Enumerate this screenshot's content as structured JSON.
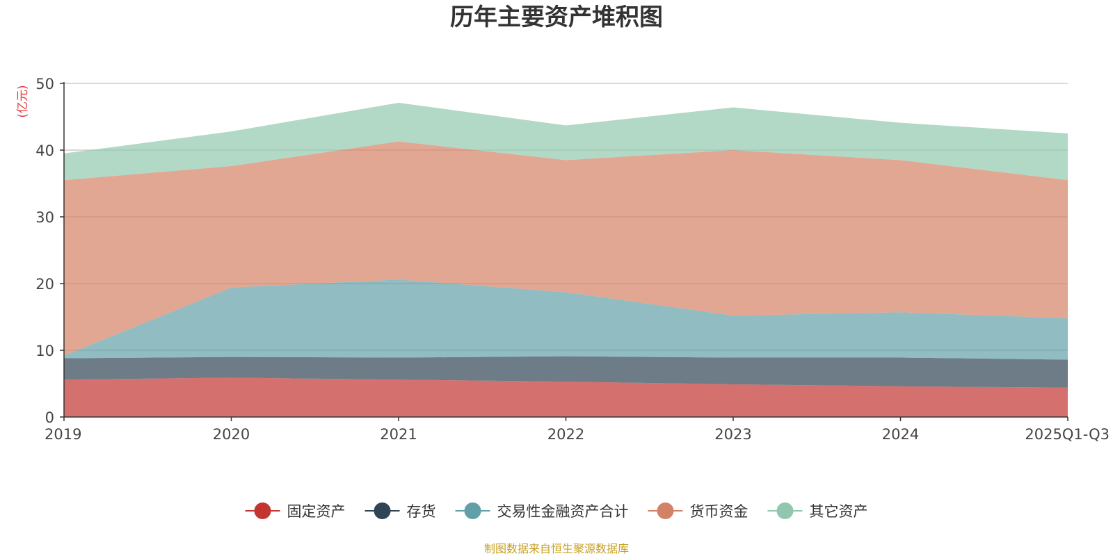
{
  "chart_data": {
    "type": "area",
    "stacked": true,
    "title": "历年主要资产堆积图",
    "unit_label": "(亿元)",
    "categories": [
      "2019",
      "2020",
      "2021",
      "2022",
      "2023",
      "2024",
      "2025Q1-Q3"
    ],
    "ylim": [
      0,
      50
    ],
    "yticks": [
      0,
      10,
      20,
      30,
      40,
      50
    ],
    "grid": true,
    "legend_position": "bottom",
    "series": [
      {
        "name": "固定资产",
        "color": "#c23531",
        "values": [
          5.6,
          5.9,
          5.6,
          5.3,
          4.9,
          4.6,
          4.4
        ]
      },
      {
        "name": "存货",
        "color": "#2f4554",
        "values": [
          3.2,
          3.1,
          3.3,
          3.8,
          4.0,
          4.3,
          4.2
        ]
      },
      {
        "name": "交易性金融资产合计",
        "color": "#61a0a8",
        "values": [
          0.4,
          10.4,
          11.7,
          9.6,
          6.3,
          6.8,
          6.2
        ]
      },
      {
        "name": "货币资金",
        "color": "#d48265",
        "values": [
          26.3,
          18.2,
          20.7,
          19.8,
          24.8,
          22.8,
          20.7
        ]
      },
      {
        "name": "其它资产",
        "color": "#91c7ae",
        "values": [
          4.0,
          5.2,
          5.8,
          5.2,
          6.4,
          5.6,
          7.0
        ]
      }
    ],
    "source_note": "制图数据来自恒生聚源数据库"
  }
}
